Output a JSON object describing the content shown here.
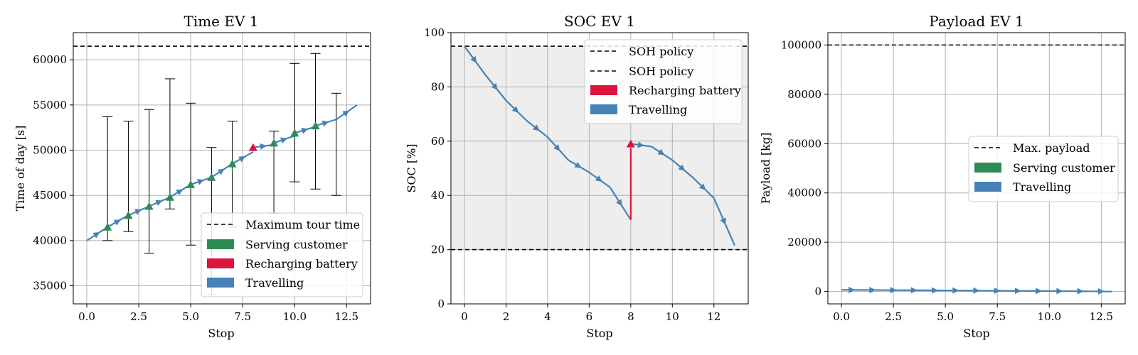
{
  "colors": {
    "serving": "#2e8b57",
    "recharging": "#dc143c",
    "travelling": "#4682b4",
    "errorbar": "#000000",
    "policy_fill": "#eeeeee",
    "hline": "#000000",
    "grid": "#b0b0b0"
  },
  "chart_data": [
    {
      "type": "line",
      "title": "Time EV 1",
      "xlabel": "Stop",
      "ylabel": "Time of day [s]",
      "xlim": [
        -0.65,
        13.65
      ],
      "ylim": [
        33000,
        63000
      ],
      "xticks": [
        0,
        2.5,
        5,
        7.5,
        10,
        12.5
      ],
      "xtick_labels": [
        "0.0",
        "2.5",
        "5.0",
        "7.5",
        "10.0",
        "12.5"
      ],
      "yticks": [
        35000,
        40000,
        45000,
        50000,
        55000,
        60000
      ],
      "ytick_labels": [
        "35000",
        "40000",
        "45000",
        "50000",
        "55000",
        "60000"
      ],
      "grid": true,
      "legend_position": "lower-right",
      "legend": [
        {
          "label": "Maximum tour time",
          "kind": "dashed"
        },
        {
          "label": "Serving customer",
          "kind": "patch",
          "color_key": "serving"
        },
        {
          "label": "Recharging battery",
          "kind": "patch",
          "color_key": "recharging"
        },
        {
          "label": "Travelling",
          "kind": "patch",
          "color_key": "travelling"
        }
      ],
      "hlines": [
        61500
      ],
      "travel_path": [
        [
          0,
          40000
        ],
        [
          1,
          41500
        ],
        [
          1,
          41500
        ],
        [
          2,
          42800
        ],
        [
          2,
          42800
        ],
        [
          3,
          43800
        ],
        [
          3,
          43800
        ],
        [
          4,
          44800
        ],
        [
          4,
          44800
        ],
        [
          5,
          46200
        ],
        [
          5,
          46200
        ],
        [
          6,
          47000
        ],
        [
          6,
          47000
        ],
        [
          7,
          48500
        ],
        [
          7,
          48500
        ],
        [
          8,
          49800
        ],
        [
          8,
          50300
        ],
        [
          9,
          50600
        ],
        [
          9,
          50800
        ],
        [
          10,
          51600
        ],
        [
          10,
          51900
        ],
        [
          11,
          52600
        ],
        [
          11,
          52700
        ],
        [
          12,
          53400
        ],
        [
          12,
          53400
        ],
        [
          13,
          55000
        ]
      ],
      "service_segments": [
        [
          1,
          40800,
          41500
        ],
        [
          2,
          42300,
          42800
        ],
        [
          3,
          43300,
          43800
        ],
        [
          4,
          44200,
          44800
        ],
        [
          5,
          45800,
          46200
        ],
        [
          6,
          46500,
          47000
        ],
        [
          7,
          47700,
          48500
        ],
        [
          9,
          50500,
          50800
        ],
        [
          10,
          51200,
          51900
        ],
        [
          11,
          52300,
          52700
        ]
      ],
      "recharge_segments": [
        [
          8,
          49800,
          50300
        ]
      ],
      "time_windows": [
        [
          1,
          40000,
          53700
        ],
        [
          2,
          41000,
          53200
        ],
        [
          3,
          38600,
          54500
        ],
        [
          4,
          43500,
          57900
        ],
        [
          5,
          39500,
          55200
        ],
        [
          6,
          34000,
          50300
        ],
        [
          7,
          41500,
          53200
        ],
        [
          9,
          43000,
          52100
        ],
        [
          10,
          46500,
          59600
        ],
        [
          11,
          45700,
          60700
        ],
        [
          12,
          45000,
          56300
        ]
      ]
    },
    {
      "type": "line",
      "title": "SOC EV 1",
      "xlabel": "Stop",
      "ylabel": "SOC [%]",
      "xlim": [
        -0.65,
        13.65
      ],
      "ylim": [
        0,
        100
      ],
      "xticks": [
        0,
        2,
        4,
        6,
        8,
        10,
        12
      ],
      "xtick_labels": [
        "0",
        "2",
        "4",
        "6",
        "8",
        "10",
        "12"
      ],
      "yticks": [
        0,
        20,
        40,
        60,
        80,
        100
      ],
      "ytick_labels": [
        "0",
        "20",
        "40",
        "60",
        "80",
        "100"
      ],
      "grid": true,
      "legend_position": "upper-right",
      "legend": [
        {
          "label": "SOH policy",
          "kind": "dashed"
        },
        {
          "label": "SOH policy",
          "kind": "dashed"
        },
        {
          "label": "Recharging battery",
          "kind": "patch",
          "color_key": "recharging"
        },
        {
          "label": "Travelling",
          "kind": "patch",
          "color_key": "travelling"
        }
      ],
      "policy_band": [
        20,
        95
      ],
      "hlines": [
        95,
        20
      ],
      "travel_path": [
        [
          0,
          95
        ],
        [
          1,
          84.5
        ],
        [
          2,
          75
        ],
        [
          3,
          67.5
        ],
        [
          4,
          61.5
        ],
        [
          5,
          53
        ],
        [
          6,
          48.5
        ],
        [
          7,
          43
        ],
        [
          8,
          31
        ],
        [
          8,
          59
        ],
        [
          9,
          58
        ],
        [
          10,
          53
        ],
        [
          11,
          46.5
        ],
        [
          12,
          39
        ],
        [
          13,
          21.5
        ]
      ],
      "recharge_segments": [
        [
          8,
          31,
          59
        ]
      ]
    },
    {
      "type": "line",
      "title": "Payload EV 1",
      "xlabel": "Stop",
      "ylabel": "Payload [kg]",
      "xlim": [
        -0.65,
        13.65
      ],
      "ylim": [
        -5000,
        105000
      ],
      "xticks": [
        0,
        2.5,
        5,
        7.5,
        10,
        12.5
      ],
      "xtick_labels": [
        "0.0",
        "2.5",
        "5.0",
        "7.5",
        "10.0",
        "12.5"
      ],
      "yticks": [
        0,
        20000,
        40000,
        60000,
        80000,
        100000
      ],
      "ytick_labels": [
        "0",
        "20000",
        "40000",
        "60000",
        "80000",
        "100000"
      ],
      "grid": true,
      "legend_position": "center-right",
      "legend": [
        {
          "label": "Max. payload",
          "kind": "dashed"
        },
        {
          "label": "Serving customer",
          "kind": "patch",
          "color_key": "serving"
        },
        {
          "label": "Travelling",
          "kind": "patch",
          "color_key": "travelling"
        }
      ],
      "hlines": [
        100000
      ],
      "travel_path": [
        [
          0,
          700
        ],
        [
          1,
          650
        ],
        [
          2,
          600
        ],
        [
          3,
          550
        ],
        [
          4,
          500
        ],
        [
          5,
          450
        ],
        [
          6,
          400
        ],
        [
          7,
          350
        ],
        [
          8,
          300
        ],
        [
          9,
          250
        ],
        [
          10,
          200
        ],
        [
          11,
          150
        ],
        [
          12,
          100
        ],
        [
          13,
          0
        ]
      ]
    }
  ]
}
